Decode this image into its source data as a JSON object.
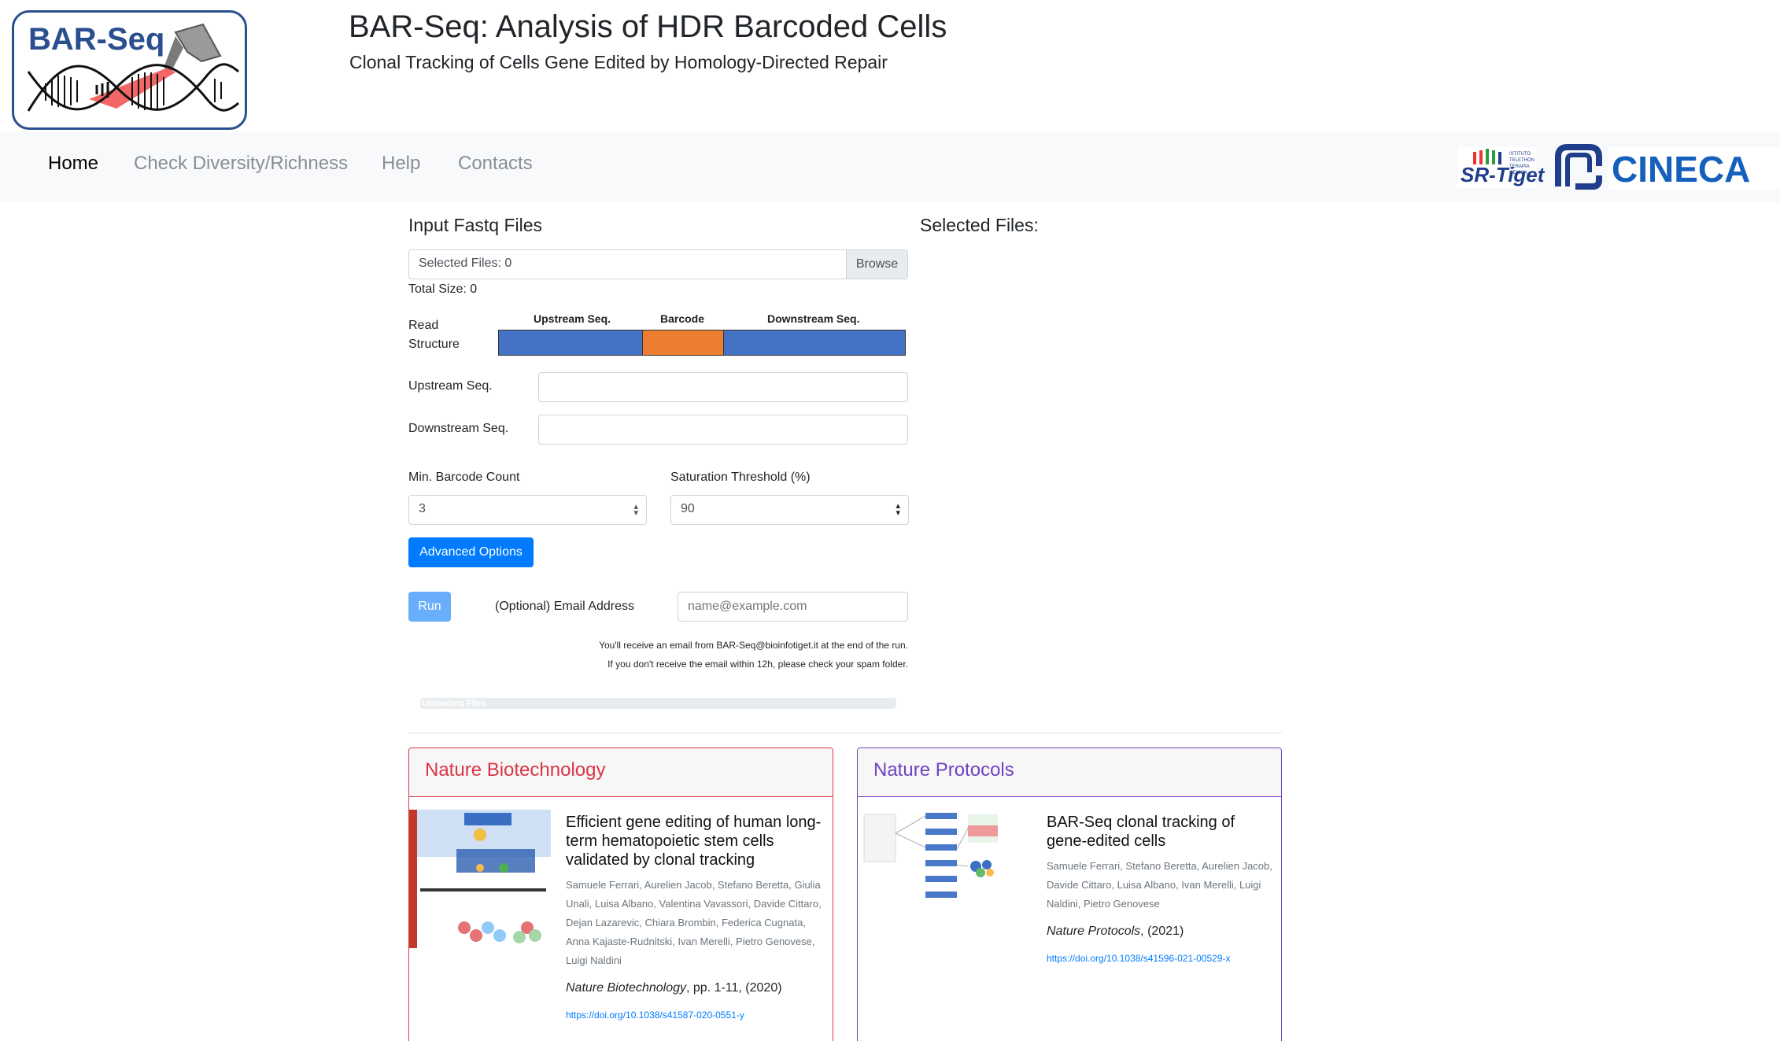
{
  "header": {
    "logo_text": "BAR-Seq",
    "title": "BAR-Seq: Analysis of HDR Barcoded Cells",
    "subtitle": "Clonal Tracking of Cells Gene Edited by Homology-Directed Repair"
  },
  "nav": {
    "items": [
      {
        "label": "Home",
        "active": true
      },
      {
        "label": "Check Diversity/Richness",
        "active": false
      },
      {
        "label": "Help",
        "active": false
      },
      {
        "label": "Contacts",
        "active": false
      }
    ],
    "partner_logos": [
      "SR-Tiget",
      "CINECA"
    ]
  },
  "input": {
    "section_title": "Input Fastq Files",
    "file_label": "Selected Files: 0",
    "browse_label": "Browse",
    "total_size": "Total Size: 0",
    "selected_files_title": "Selected Files:"
  },
  "read_structure": {
    "label_line1": "Read",
    "label_line2": "Structure",
    "segments": [
      {
        "label": "Upstream Seq.",
        "color": "#4472c4"
      },
      {
        "label": "Barcode",
        "color": "#ed7d31"
      },
      {
        "label": "Downstream Seq.",
        "color": "#4472c4"
      }
    ]
  },
  "form": {
    "upstream_label": "Upstream Seq.",
    "upstream_value": "",
    "downstream_label": "Downstream Seq.",
    "downstream_value": "",
    "min_barcode_label": "Min. Barcode Count",
    "min_barcode_value": "3",
    "saturation_label": "Saturation Threshold (%)",
    "saturation_value": "90",
    "advanced_options_label": "Advanced Options",
    "run_label": "Run",
    "email_label": "(Optional) Email Address",
    "email_placeholder": "name@example.com",
    "note_line1": "You'll receive an email from BAR-Seq@bioinfotiget.it at the end of the run.",
    "note_line2": "If you don't receive the email within 12h, please check your spam folder.",
    "progress_label": "Uploading Files",
    "progress": 0
  },
  "cards": [
    {
      "header": "Nature Biotechnology",
      "color": "#dc3545",
      "title": "Efficient gene editing of human long-term hematopoietic stem cells validated by clonal tracking",
      "authors": "Samuele Ferrari, Aurelien Jacob, Stefano Beretta, Giulia Unali, Luisa Albano, Valentina Vavassori, Davide Cittaro, Dejan Lazarevic, Chiara Brombin, Federica Cugnata, Anna Kajaste-Rudnitski, Ivan Merelli, Pietro Genovese, Luigi Naldini",
      "journal_name": "Nature Biotechnology",
      "journal_rest": ", pp. 1-11, (2020)",
      "doi": "https://doi.org/10.1038/s41587-020-0551-y"
    },
    {
      "header": "Nature Protocols",
      "color": "#6f42c1",
      "title": "BAR-Seq clonal tracking of gene-edited cells",
      "authors": "Samuele Ferrari, Stefano Beretta, Aurelien Jacob, Davide Cittaro, Luisa Albano, Ivan Merelli, Luigi Naldini, Pietro Genovese",
      "journal_name": "Nature Protocols",
      "journal_rest": ", (2021)",
      "doi": "https://doi.org/10.1038/s41596-021-00529-x"
    }
  ]
}
